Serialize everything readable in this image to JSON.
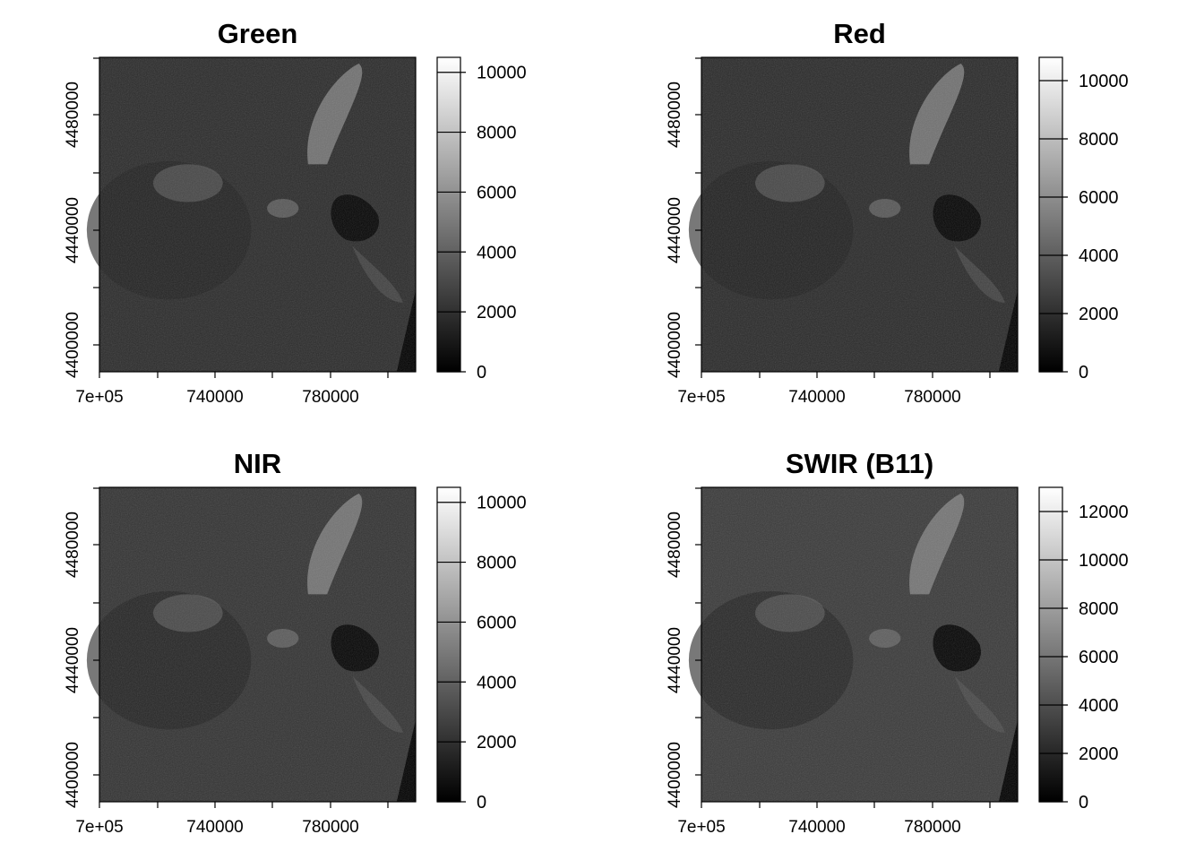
{
  "chart_data": [
    {
      "type": "heatmap",
      "title": "Green",
      "x_ticks": [
        "7e+05",
        "740000",
        "780000"
      ],
      "y_ticks": [
        "4400000",
        "4440000",
        "4480000"
      ],
      "colorbar": {
        "range": [
          0,
          10500
        ],
        "ticks": [
          "0",
          "2000",
          "4000",
          "6000",
          "8000",
          "10000"
        ],
        "colormap": "greyscale"
      },
      "colors": {
        "low": "#000000",
        "high": "#ffffff",
        "background": "#2b2b2b"
      }
    },
    {
      "type": "heatmap",
      "title": "Red",
      "x_ticks": [
        "7e+05",
        "740000",
        "780000"
      ],
      "y_ticks": [
        "4400000",
        "4440000",
        "4480000"
      ],
      "colorbar": {
        "range": [
          0,
          10800
        ],
        "ticks": [
          "0",
          "2000",
          "4000",
          "6000",
          "8000",
          "10000"
        ],
        "colormap": "greyscale"
      },
      "colors": {
        "low": "#000000",
        "high": "#ffffff",
        "background": "#2a2a2a"
      }
    },
    {
      "type": "heatmap",
      "title": "NIR",
      "x_ticks": [
        "7e+05",
        "740000",
        "780000"
      ],
      "y_ticks": [
        "4400000",
        "4440000",
        "4480000"
      ],
      "colorbar": {
        "range": [
          0,
          10500
        ],
        "ticks": [
          "0",
          "2000",
          "4000",
          "6000",
          "8000",
          "10000"
        ],
        "colormap": "greyscale"
      },
      "colors": {
        "low": "#000000",
        "high": "#ffffff",
        "background": "#333333"
      }
    },
    {
      "type": "heatmap",
      "title": "SWIR (B11)",
      "x_ticks": [
        "7e+05",
        "740000",
        "780000"
      ],
      "y_ticks": [
        "4400000",
        "4440000",
        "4480000"
      ],
      "colorbar": {
        "range": [
          0,
          13000
        ],
        "ticks": [
          "0",
          "2000",
          "4000",
          "6000",
          "8000",
          "10000",
          "12000"
        ],
        "colormap": "greyscale"
      },
      "colors": {
        "low": "#000000",
        "high": "#ffffff",
        "background": "#3a3a3a"
      }
    }
  ]
}
